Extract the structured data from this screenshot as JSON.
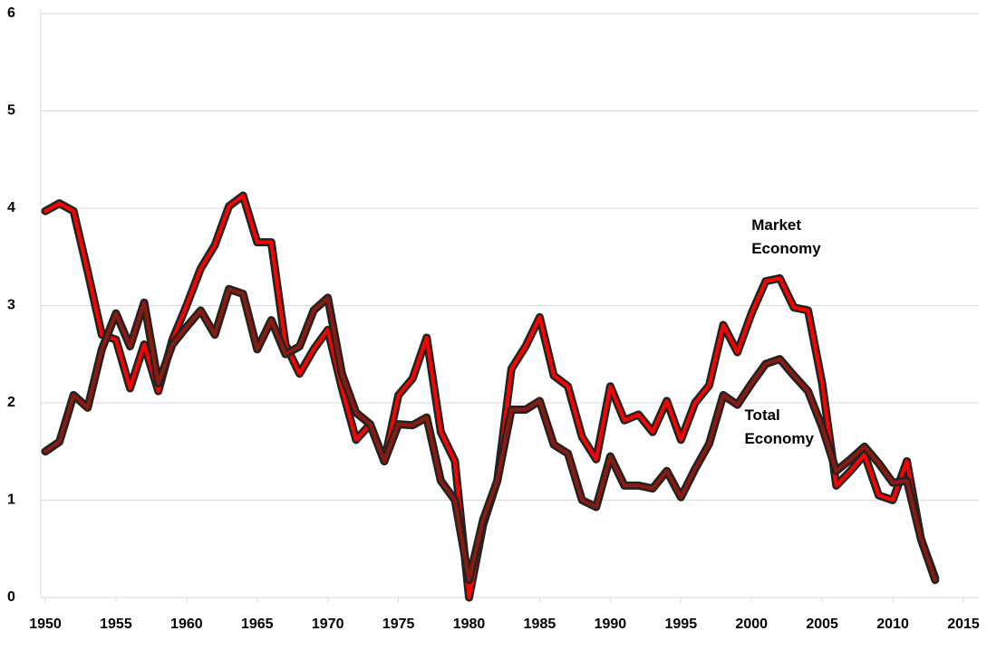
{
  "chart_data": {
    "type": "line",
    "x": [
      1950,
      1951,
      1952,
      1953,
      1954,
      1955,
      1956,
      1957,
      1958,
      1959,
      1960,
      1961,
      1962,
      1963,
      1964,
      1965,
      1966,
      1967,
      1968,
      1969,
      1970,
      1971,
      1972,
      1973,
      1974,
      1975,
      1976,
      1977,
      1978,
      1979,
      1980,
      1981,
      1982,
      1983,
      1984,
      1985,
      1986,
      1987,
      1988,
      1989,
      1990,
      1991,
      1992,
      1993,
      1994,
      1995,
      1996,
      1997,
      1998,
      1999,
      2000,
      2001,
      2002,
      2003,
      2004,
      2005,
      2006,
      2007,
      2008,
      2009,
      2010,
      2011,
      2012,
      2013
    ],
    "series": [
      {
        "name": "Market Economy",
        "color": "#ff0000",
        "values": [
          3.97,
          4.05,
          3.97,
          3.35,
          2.7,
          2.65,
          2.15,
          2.6,
          2.12,
          2.65,
          3.0,
          3.38,
          3.62,
          4.02,
          4.13,
          3.65,
          3.65,
          2.6,
          2.3,
          2.55,
          2.75,
          2.15,
          1.62,
          1.78,
          1.4,
          2.08,
          2.25,
          2.67,
          1.7,
          1.4,
          0,
          0.75,
          1.2,
          2.35,
          2.58,
          2.88,
          2.28,
          2.17,
          1.65,
          1.42,
          2.17,
          1.82,
          1.88,
          1.7,
          2.02,
          1.62,
          2.0,
          2.18,
          2.8,
          2.52,
          2.92,
          3.25,
          3.28,
          2.98,
          2.95,
          2.2,
          1.15,
          1.3,
          1.47,
          1.05,
          1.0,
          1.4,
          0.6,
          0.2
        ]
      },
      {
        "name": "Total Economy",
        "color": "#8b1a10",
        "values": [
          1.5,
          1.6,
          2.08,
          1.95,
          2.55,
          2.92,
          2.58,
          3.03,
          2.2,
          2.6,
          2.78,
          2.95,
          2.7,
          3.17,
          3.12,
          2.55,
          2.85,
          2.5,
          2.58,
          2.95,
          3.08,
          2.3,
          1.9,
          1.78,
          1.4,
          1.78,
          1.77,
          1.85,
          1.2,
          1.0,
          0.18,
          0.8,
          1.2,
          1.93,
          1.93,
          2.02,
          1.57,
          1.48,
          1.0,
          0.93,
          1.45,
          1.15,
          1.15,
          1.12,
          1.3,
          1.03,
          1.32,
          1.58,
          2.08,
          1.98,
          2.2,
          2.4,
          2.45,
          2.28,
          2.12,
          1.75,
          1.3,
          1.42,
          1.55,
          1.38,
          1.18,
          1.2,
          0.6,
          0.18
        ]
      }
    ],
    "annotations": [
      {
        "text": "Market Economy",
        "x": 2000,
        "y": 3.7
      },
      {
        "text": "Total Economy",
        "x": 1999.5,
        "y": 1.75
      }
    ],
    "xlim": [
      1950,
      2015
    ],
    "xticks": [
      1950,
      1955,
      1960,
      1965,
      1970,
      1975,
      1980,
      1985,
      1990,
      1995,
      2000,
      2005,
      2010,
      2015
    ],
    "ylim": [
      0,
      6
    ],
    "yticks": [
      0,
      1,
      2,
      3,
      4,
      5,
      6
    ],
    "grid": true
  }
}
